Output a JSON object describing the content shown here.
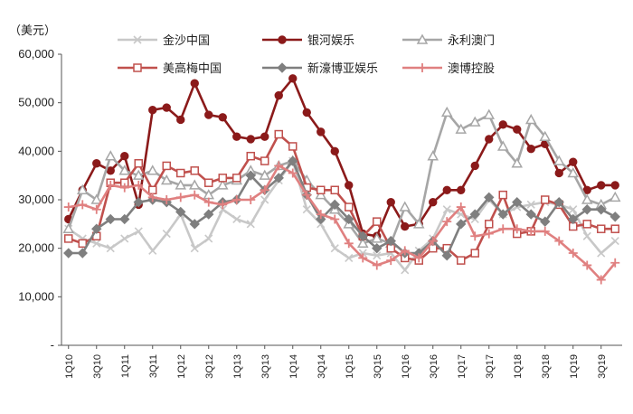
{
  "chart_data": {
    "type": "line",
    "title": "",
    "unit_label": "（美元）",
    "xlabel": "",
    "ylabel": "",
    "ylim": [
      0,
      60000
    ],
    "yticks": [
      0,
      10000,
      20000,
      30000,
      40000,
      50000,
      60000
    ],
    "ytick_labels": [
      "-",
      "10,000",
      "20,000",
      "30,000",
      "40,000",
      "50,000",
      "60,000"
    ],
    "grid": false,
    "legend_position": "top",
    "xticklabels": [
      "1Q10",
      "3Q10",
      "1Q11",
      "3Q11",
      "1Q12",
      "3Q12",
      "1Q13",
      "3Q13",
      "1Q14",
      "3Q14",
      "1Q15",
      "3Q15",
      "1Q16",
      "3Q16",
      "1Q17",
      "3Q17",
      "1Q18",
      "3Q18",
      "1Q19",
      "3Q19"
    ],
    "series": [
      {
        "name": "金沙中国",
        "color": "#c8c8c8",
        "marker": "x",
        "values": [
          24000,
          22000,
          21000,
          20000,
          22000,
          23500,
          19500,
          23000,
          27000,
          20000,
          22000,
          28000,
          26000,
          25000,
          30000,
          34000,
          38000,
          28000,
          25000,
          20000,
          18000,
          19000,
          18500,
          19000,
          15500,
          19500,
          22000,
          28000,
          27000,
          26000,
          30000,
          27000,
          28500,
          29000,
          29500,
          29000,
          28000,
          22500,
          19000,
          21500
        ]
      },
      {
        "name": "银河娱乐",
        "color": "#8b1a1a",
        "marker": "circle",
        "values": [
          26000,
          32000,
          37500,
          36000,
          39000,
          29000,
          48500,
          49000,
          46500,
          54000,
          47500,
          47000,
          43000,
          42500,
          43000,
          51500,
          55000,
          48000,
          44000,
          40000,
          33000,
          23000,
          22500,
          29500,
          24500,
          25000,
          29500,
          32000,
          32000,
          37000,
          42500,
          45500,
          44500,
          40500,
          41500,
          35500,
          37800,
          32000,
          33000,
          33000
        ]
      },
      {
        "name": "永利澳门",
        "color": "#a6a6a6",
        "marker": "triangle",
        "values": [
          24000,
          32000,
          30000,
          39000,
          36000,
          35000,
          36000,
          34000,
          33000,
          33000,
          31000,
          33000,
          34000,
          36000,
          35000,
          37000,
          38000,
          34000,
          31000,
          28000,
          25000,
          21000,
          22000,
          21000,
          28500,
          25000,
          39000,
          48000,
          44500,
          46000,
          47500,
          41000,
          37500,
          46500,
          43000,
          38000,
          35500,
          30000,
          29000,
          30500
        ]
      },
      {
        "name": "美高梅中国",
        "color": "#c0504d",
        "marker": "square",
        "values": [
          22000,
          21000,
          22500,
          33500,
          33500,
          37500,
          32000,
          37000,
          35500,
          36000,
          33500,
          34500,
          34500,
          39000,
          38000,
          43500,
          41000,
          32500,
          32000,
          32000,
          28500,
          22500,
          25500,
          20000,
          18000,
          17500,
          20000,
          20000,
          17500,
          19000,
          25000,
          31000,
          23000,
          23500,
          30000,
          29000,
          24500,
          25000,
          24000,
          24000
        ]
      },
      {
        "name": "新濠博亚娱乐",
        "color": "#7f7f7f",
        "marker": "diamond",
        "values": [
          19000,
          19000,
          24000,
          26000,
          26000,
          29500,
          30000,
          29500,
          27500,
          25000,
          27000,
          29500,
          30000,
          35000,
          32000,
          34500,
          38000,
          31000,
          26000,
          29000,
          26000,
          22500,
          20000,
          21500,
          19000,
          19000,
          21500,
          18500,
          25000,
          27000,
          30500,
          27000,
          29500,
          27000,
          25500,
          29500,
          26000,
          28000,
          28000,
          26500
        ]
      },
      {
        "name": "澳博控股",
        "color": "#e08080",
        "marker": "plus",
        "values": [
          28500,
          29000,
          28000,
          33000,
          32500,
          33000,
          30500,
          30000,
          30500,
          31000,
          29500,
          29000,
          30000,
          30000,
          32000,
          37000,
          35500,
          31000,
          27000,
          26000,
          21000,
          18000,
          16500,
          17500,
          19500,
          18000,
          21500,
          25500,
          28500,
          22500,
          23000,
          24000,
          24000,
          23500,
          23500,
          21500,
          19000,
          16500,
          13500,
          17000
        ]
      }
    ]
  }
}
